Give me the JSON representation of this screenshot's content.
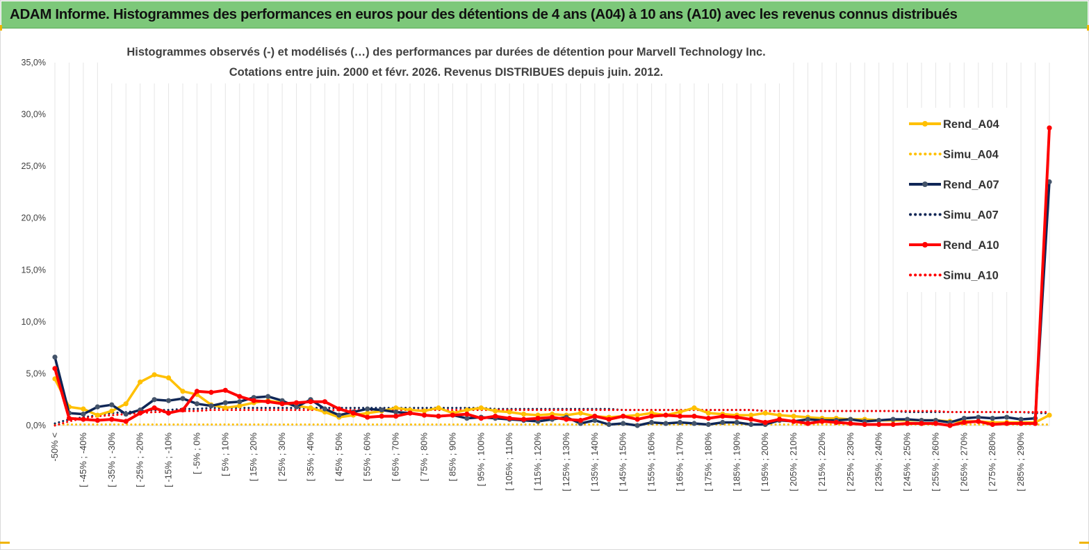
{
  "header": {
    "title": "ADAM Informe. Histogrammes des performances en euros pour des détentions de 4 ans (A04) à 10 ans (A10) avec les revenus connus distribués"
  },
  "chart_data": {
    "type": "line",
    "title_line1": "Histogrammes observés (-)  et modélisés (…) des performances par durées de détention pour Marvell Technology Inc.",
    "title_line2": "Cotations entre juin. 2000 et févr. 2026. Revenus DISTRIBUES depuis juin. 2012.",
    "ylim": [
      0,
      35
    ],
    "y_ticks": [
      "0,0%",
      "5,0%",
      "10,0%",
      "15,0%",
      "20,0%",
      "25,0%",
      "30,0%",
      "35,0%"
    ],
    "y_tick_values": [
      0,
      5,
      10,
      15,
      20,
      25,
      30,
      35
    ],
    "grid": "vertical",
    "legend_position": "right",
    "x_labels": [
      "-50% <",
      "[ -45% ; -40%",
      "[ -35% ; -30%",
      "[ -25% ; -20%",
      "[ -15% ; -10%",
      "[ -5% ; 0%",
      "[ 5% ; 10%",
      "[ 15% ; 20%",
      "[ 25% ; 30%",
      "[ 35% ; 40%",
      "[ 45% ; 50%",
      "[ 55% ; 60%",
      "[ 65% ; 70%",
      "[ 75% ; 80%",
      "[ 85% ; 90%",
      "[ 95% ; 100%",
      "[ 105% ; 110%",
      "[ 115% ; 120%",
      "[ 125% ; 130%",
      "[ 135% ; 140%",
      "[ 145% ; 150%",
      "[ 155% ; 160%",
      "[ 165% ; 170%",
      "[ 175% ; 180%",
      "[ 185% ; 190%",
      "[ 195% ; 200%",
      "[ 205% ; 210%",
      "[ 215% ; 220%",
      "[ 225% ; 230%",
      "[ 235% ; 240%",
      "[ 245% ; 250%",
      "[ 255% ; 260%",
      "[ 265% ; 270%",
      "[ 275% ; 280%",
      "[ 285% ; 290%"
    ],
    "series": [
      {
        "name": "Rend_A04",
        "style": "solid",
        "color": "#ffc000",
        "values": [
          4.5,
          1.8,
          1.6,
          1.0,
          1.4,
          2.1,
          4.2,
          4.9,
          4.6,
          3.3,
          3.0,
          2.0,
          1.7,
          1.9,
          2.2,
          2.4,
          2.2,
          1.9,
          1.7,
          1.3,
          0.8,
          1.0,
          1.2,
          1.4,
          1.7,
          1.5,
          1.4,
          1.7,
          1.2,
          1.5,
          1.7,
          1.4,
          1.3,
          1.1,
          1.0,
          1.1,
          1.0,
          1.2,
          0.9,
          0.8,
          0.9,
          1.0,
          1.2,
          1.0,
          1.3,
          1.7,
          1.2,
          1.1,
          1.0,
          1.0,
          1.2,
          1.0,
          0.9,
          0.8,
          0.7,
          0.7,
          0.6,
          0.6,
          0.5,
          0.5,
          0.5,
          0.5,
          0.5,
          0.4,
          0.4,
          0.4,
          0.3,
          0.3,
          0.3,
          0.3,
          1.0
        ]
      },
      {
        "name": "Simu_A04",
        "style": "dotted",
        "color": "#ffc000",
        "values": [
          0.1,
          0.1,
          0.1,
          0.1,
          0.1,
          0.1,
          0.1,
          0.1,
          0.1,
          0.1,
          0.1,
          0.1,
          0.1,
          0.1,
          0.1,
          0.1,
          0.1,
          0.1,
          0.1,
          0.1,
          0.1,
          0.1,
          0.1,
          0.1,
          0.1,
          0.1,
          0.1,
          0.1,
          0.1,
          0.1,
          0.1,
          0.1,
          0.1,
          0.1,
          0.1,
          0.1,
          0.1,
          0.1,
          0.1,
          0.1,
          0.1,
          0.1,
          0.1,
          0.1,
          0.1,
          0.1,
          0.1,
          0.1,
          0.1,
          0.1,
          0.1,
          0.1,
          0.1,
          0.1,
          0.1,
          0.1,
          0.1,
          0.1,
          0.1,
          0.1,
          0.1,
          0.1,
          0.1,
          0.1,
          0.1,
          0.1,
          0.1,
          0.1,
          0.1,
          0.1,
          0.1
        ]
      },
      {
        "name": "Rend_A07",
        "style": "solid",
        "color": "#0f2656",
        "values": [
          6.6,
          1.2,
          1.1,
          1.8,
          2.0,
          1.1,
          1.5,
          2.5,
          2.4,
          2.6,
          2.1,
          1.9,
          2.2,
          2.3,
          2.7,
          2.8,
          2.4,
          1.8,
          2.5,
          1.6,
          1.0,
          1.3,
          1.6,
          1.5,
          1.3,
          1.2,
          1.0,
          0.9,
          1.0,
          0.7,
          0.8,
          0.7,
          0.6,
          0.5,
          0.4,
          0.6,
          0.8,
          0.2,
          0.5,
          0.1,
          0.2,
          0.0,
          0.3,
          0.2,
          0.3,
          0.2,
          0.1,
          0.3,
          0.3,
          0.1,
          0.1,
          0.5,
          0.4,
          0.6,
          0.5,
          0.5,
          0.6,
          0.4,
          0.5,
          0.6,
          0.6,
          0.5,
          0.5,
          0.3,
          0.7,
          0.8,
          0.7,
          0.8,
          0.6,
          0.7,
          23.5
        ]
      },
      {
        "name": "Simu_A07",
        "style": "dotted",
        "color": "#0f2656",
        "values": [
          0.2,
          0.6,
          0.8,
          1.0,
          1.2,
          1.3,
          1.4,
          1.5,
          1.5,
          1.6,
          1.6,
          1.7,
          1.7,
          1.7,
          1.7,
          1.7,
          1.7,
          1.7,
          1.7,
          1.7,
          1.7,
          1.7,
          1.7,
          1.7,
          1.7,
          1.7,
          1.7,
          1.7,
          1.7,
          1.7,
          1.7,
          1.6,
          1.6,
          1.6,
          1.6,
          1.6,
          1.6,
          1.6,
          1.6,
          1.6,
          1.5,
          1.5,
          1.5,
          1.5,
          1.5,
          1.5,
          1.5,
          1.5,
          1.5,
          1.5,
          1.4,
          1.4,
          1.4,
          1.4,
          1.4,
          1.4,
          1.4,
          1.4,
          1.4,
          1.4,
          1.3,
          1.3,
          1.3,
          1.3,
          1.3,
          1.3,
          1.3,
          1.3,
          1.3,
          1.2,
          1.2
        ]
      },
      {
        "name": "Rend_A10",
        "style": "solid",
        "color": "#ff0000",
        "values": [
          5.5,
          0.7,
          0.6,
          0.5,
          0.6,
          0.4,
          1.2,
          1.7,
          1.2,
          1.5,
          3.3,
          3.2,
          3.4,
          2.8,
          2.4,
          2.3,
          2.1,
          2.2,
          2.3,
          2.3,
          1.6,
          1.2,
          0.8,
          0.9,
          0.9,
          1.2,
          1.0,
          0.9,
          1.0,
          1.1,
          0.7,
          0.9,
          0.7,
          0.6,
          0.7,
          0.8,
          0.6,
          0.5,
          0.9,
          0.6,
          0.9,
          0.6,
          0.9,
          1.0,
          0.9,
          0.9,
          0.7,
          0.9,
          0.8,
          0.6,
          0.3,
          0.6,
          0.4,
          0.2,
          0.4,
          0.3,
          0.2,
          0.1,
          0.1,
          0.1,
          0.2,
          0.2,
          0.2,
          0.0,
          0.3,
          0.4,
          0.1,
          0.2,
          0.2,
          0.2,
          28.7
        ]
      },
      {
        "name": "Simu_A10",
        "style": "dotted",
        "color": "#ff0000",
        "values": [
          0.0,
          0.4,
          0.7,
          0.9,
          1.0,
          1.1,
          1.2,
          1.3,
          1.3,
          1.4,
          1.4,
          1.5,
          1.5,
          1.5,
          1.5,
          1.5,
          1.5,
          1.5,
          1.5,
          1.5,
          1.5,
          1.5,
          1.5,
          1.5,
          1.5,
          1.5,
          1.5,
          1.5,
          1.5,
          1.5,
          1.5,
          1.5,
          1.5,
          1.5,
          1.5,
          1.5,
          1.5,
          1.5,
          1.5,
          1.5,
          1.5,
          1.5,
          1.5,
          1.5,
          1.5,
          1.5,
          1.5,
          1.5,
          1.5,
          1.5,
          1.4,
          1.4,
          1.4,
          1.4,
          1.4,
          1.4,
          1.4,
          1.4,
          1.4,
          1.4,
          1.4,
          1.4,
          1.4,
          1.3,
          1.3,
          1.3,
          1.3,
          1.3,
          1.3,
          1.3,
          1.3
        ]
      }
    ]
  }
}
